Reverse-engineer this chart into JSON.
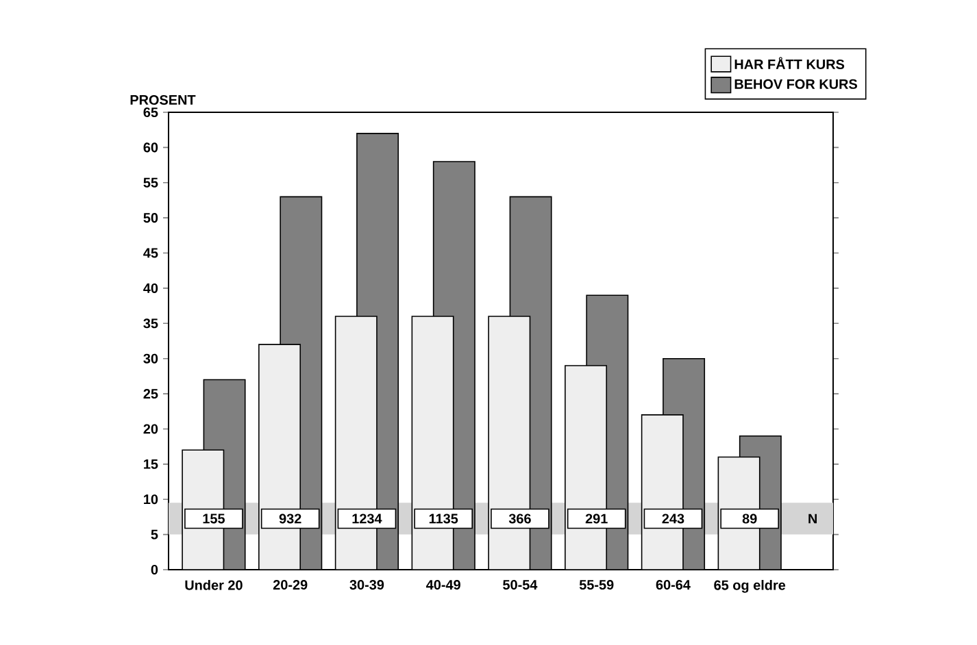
{
  "chart_data": {
    "type": "bar",
    "ylabel": "PROSENT",
    "categories": [
      "Under 20",
      "20-29",
      "30-39",
      "40-49",
      "50-54",
      "55-59",
      "60-64",
      "65 og eldre"
    ],
    "series": [
      {
        "name": "HAR FÅTT KURS",
        "color": "#eeeeee",
        "values": [
          17,
          32,
          36,
          36,
          36,
          29,
          22,
          16
        ]
      },
      {
        "name": "BEHOV FOR KURS",
        "color": "#808080",
        "values": [
          27,
          53,
          62,
          58,
          53,
          39,
          30,
          19
        ]
      }
    ],
    "ylim": [
      0,
      65
    ],
    "yticks": [
      0,
      5,
      10,
      15,
      20,
      25,
      30,
      35,
      40,
      45,
      50,
      55,
      60,
      65
    ],
    "bands": [
      {
        "axis": "y",
        "from": 5,
        "to": 9.5,
        "label": "N",
        "color": "#d4d4d4"
      }
    ],
    "annotations": [
      "155",
      "932",
      "1234",
      "1135",
      "366",
      "291",
      "243",
      "89"
    ],
    "legend": "top right",
    "grid": false
  }
}
